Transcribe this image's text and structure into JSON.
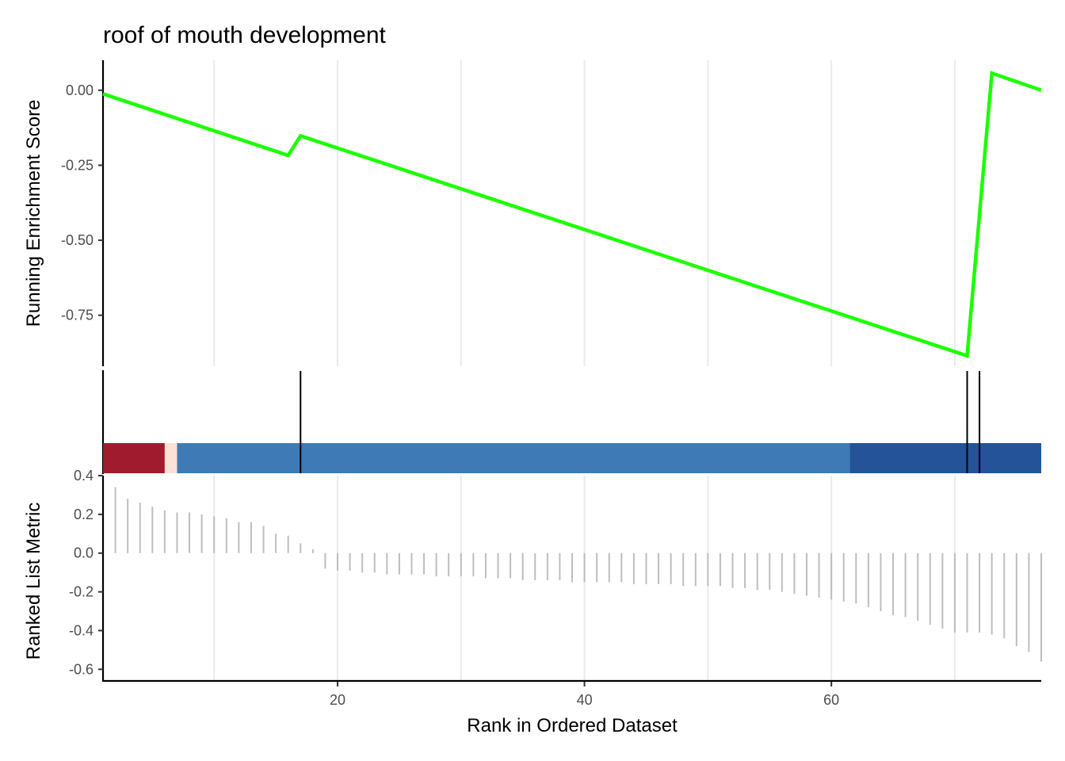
{
  "chart_data": [
    {
      "type": "line",
      "title": "roof of mouth development",
      "ylabel": "Running Enrichment Score",
      "xlim": [
        1,
        77
      ],
      "ylim": [
        -0.92,
        0.1
      ],
      "yticks": [
        0.0,
        -0.25,
        -0.5,
        -0.75
      ],
      "ytick_labels": [
        "0.00",
        "-0.25",
        "-0.50",
        "-0.75"
      ],
      "xgrid": [
        10,
        20,
        30,
        40,
        50,
        60,
        70
      ],
      "grid": "vertical-major",
      "color": "#1CFF00",
      "series": [
        {
          "x": [
            1,
            16,
            17,
            71,
            73,
            77
          ],
          "y": [
            -0.012,
            -0.217,
            -0.152,
            -0.885,
            0.057,
            0.0
          ]
        }
      ]
    },
    {
      "type": "gene-set-hits",
      "hits": [
        17,
        71,
        72
      ],
      "heat_bands": [
        {
          "from": 1,
          "to": 6,
          "color": "#A01B2D"
        },
        {
          "from": 6,
          "to": 7,
          "color": "#FDE0D6"
        },
        {
          "from": 7,
          "to": 61.5,
          "color": "#3E7BB6"
        },
        {
          "from": 61.5,
          "to": 77,
          "color": "#245399"
        }
      ],
      "hit_color": "#000000"
    },
    {
      "type": "bar",
      "ylabel": "Ranked List Metric",
      "xlabel": "Rank in Ordered Dataset",
      "xlim": [
        1,
        77
      ],
      "ylim": [
        -0.66,
        0.4
      ],
      "yticks": [
        0.4,
        0.2,
        0.0,
        -0.2,
        -0.4,
        -0.6
      ],
      "ytick_labels": [
        "0.4",
        "0.2",
        "0.0",
        "-0.2",
        "-0.4",
        "-0.6"
      ],
      "xticks": [
        20,
        40,
        60
      ],
      "xtick_labels": [
        "20",
        "40",
        "60"
      ],
      "color": "#BEBEBE",
      "x": [
        2,
        3,
        4,
        5,
        6,
        7,
        8,
        9,
        10,
        11,
        12,
        13,
        14,
        15,
        16,
        17,
        18,
        19,
        20,
        21,
        22,
        23,
        24,
        25,
        26,
        27,
        28,
        29,
        30,
        31,
        32,
        33,
        34,
        35,
        36,
        37,
        38,
        39,
        40,
        41,
        42,
        43,
        44,
        45,
        46,
        47,
        48,
        49,
        50,
        51,
        52,
        53,
        54,
        55,
        56,
        57,
        58,
        59,
        60,
        61,
        62,
        63,
        64,
        65,
        66,
        67,
        68,
        69,
        70,
        71,
        72,
        73,
        74,
        75,
        76,
        77
      ],
      "values": [
        0.34,
        0.28,
        0.26,
        0.24,
        0.22,
        0.21,
        0.21,
        0.2,
        0.19,
        0.18,
        0.16,
        0.16,
        0.14,
        0.1,
        0.09,
        0.05,
        0.02,
        -0.08,
        -0.09,
        -0.09,
        -0.1,
        -0.1,
        -0.11,
        -0.11,
        -0.11,
        -0.11,
        -0.12,
        -0.12,
        -0.12,
        -0.12,
        -0.13,
        -0.13,
        -0.13,
        -0.14,
        -0.14,
        -0.14,
        -0.14,
        -0.15,
        -0.15,
        -0.15,
        -0.15,
        -0.15,
        -0.16,
        -0.16,
        -0.16,
        -0.16,
        -0.17,
        -0.17,
        -0.17,
        -0.17,
        -0.18,
        -0.18,
        -0.19,
        -0.19,
        -0.2,
        -0.21,
        -0.22,
        -0.23,
        -0.24,
        -0.25,
        -0.26,
        -0.28,
        -0.3,
        -0.32,
        -0.33,
        -0.35,
        -0.37,
        -0.39,
        -0.41,
        -0.41,
        -0.41,
        -0.42,
        -0.44,
        -0.48,
        -0.51,
        -0.56
      ]
    }
  ]
}
